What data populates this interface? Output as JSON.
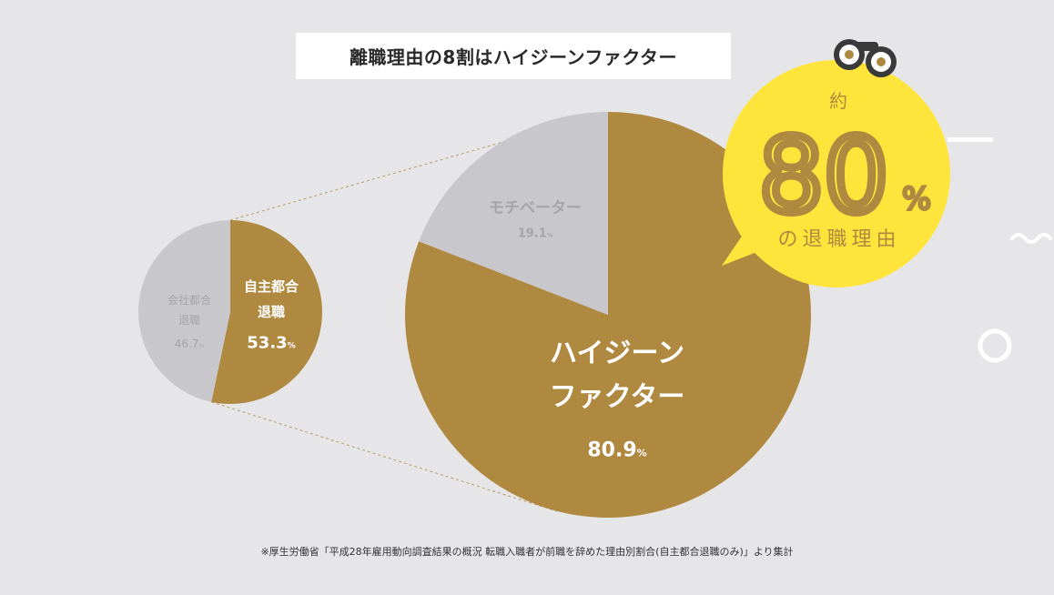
{
  "title": "離職理由の8割はハイジーンファクター",
  "colors": {
    "gold": "#b08941",
    "gray": "#c8c7cb",
    "background": "#e6e6e8",
    "gray_label": "#a5a4a9",
    "bubble": "#ffe53b",
    "bubble_text": "#b08941",
    "title_bg": "#ffffff"
  },
  "chart_data": [
    {
      "type": "pie",
      "slices": [
        {
          "label": "自主都合\n退職",
          "value": 53.3,
          "value_label": "53.3",
          "unit": "%",
          "color": "#b08941"
        },
        {
          "label": "会社都合\n退職",
          "value": 46.7,
          "value_label": "46.7",
          "unit": "%",
          "color": "#c8c7cb"
        }
      ]
    },
    {
      "type": "pie",
      "slices": [
        {
          "label": "ハイジーン\nファクター",
          "value": 80.9,
          "value_label": "80.9",
          "unit": "%",
          "color": "#b08941"
        },
        {
          "label": "モチベーター",
          "value": 19.1,
          "value_label": "19.1",
          "unit": "%",
          "color": "#c8c7cb"
        }
      ]
    }
  ],
  "callout": {
    "prefix": "約",
    "number": "80",
    "unit": "%",
    "caption": "の退職理由",
    "icon": "binoculars-icon"
  },
  "footnote": "※厚生労働省「平成28年雇用動向調査結果の概況 転職入職者が前職を辞めた理由別割合(自主都合退職のみ)」より集計"
}
